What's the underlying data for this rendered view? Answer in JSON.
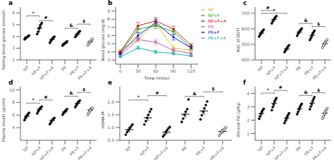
{
  "chart_data": [
    {
      "type": "scatter",
      "title": "a",
      "ylabel": "Fasting blood glucose (mmol/l)",
      "categories": [
        "NP",
        "NP+F",
        "NP+F+A",
        "PR",
        "PR+F",
        "PR+F+A"
      ],
      "means": [
        3.95,
        4.7,
        3.75,
        3.4,
        4.2,
        3.55
      ],
      "errors": [
        0.08,
        0.3,
        0.12,
        0.06,
        0.15,
        0.1
      ],
      "points": [
        [
          3.75,
          3.82,
          3.9,
          3.95,
          4.02,
          4.08
        ],
        [
          4.2,
          4.4,
          4.65,
          4.8,
          5.0,
          5.15
        ],
        [
          3.45,
          3.6,
          3.72,
          3.82,
          3.92,
          3.98
        ],
        [
          3.22,
          3.3,
          3.38,
          3.45,
          3.52,
          3.58
        ],
        [
          3.95,
          4.05,
          4.18,
          4.28,
          4.38,
          4.45
        ],
        [
          3.25,
          3.38,
          3.5,
          3.6,
          3.7,
          3.78
        ]
      ],
      "marker": [
        "filled",
        "filled",
        "filled",
        "filled",
        "filled",
        "open"
      ],
      "color": "#000000",
      "ylim": [
        2.0,
        6.5
      ],
      "yticks": [
        2,
        3,
        4,
        5,
        6
      ],
      "grid": false,
      "annotations": [
        {
          "x1": "NP",
          "x2": "NP+F",
          "y": 5.75,
          "text": "*"
        },
        {
          "x1": "NP+F",
          "x2": "NP+F+A",
          "y": 5.35,
          "text": "#"
        },
        {
          "x1": "PR",
          "x2": "PR+F",
          "y": 4.7,
          "text": "&"
        },
        {
          "x1": "PR+F",
          "x2": "PR+F+A",
          "y": 5.05,
          "text": "$"
        }
      ]
    },
    {
      "type": "line",
      "title": "b",
      "xlabel": "Time (mins)",
      "ylabel": "Blood glucose (mg/dl)",
      "x": [
        0,
        30,
        60,
        90,
        120
      ],
      "xlim": [
        -8,
        132
      ],
      "xticks": [
        0,
        30,
        60,
        90,
        120
      ],
      "ylim": [
        2.5,
        9.5
      ],
      "yticks": [
        3,
        4,
        5,
        6,
        7,
        8,
        9
      ],
      "marker": "square",
      "legend": "upper right",
      "grid": false,
      "series": [
        {
          "name": "NP",
          "color": "#d4b800",
          "values": [
            4.2,
            5.6,
            7.5,
            4.5,
            4.2
          ],
          "errors": [
            0.1,
            0.25,
            0.35,
            0.25,
            0.15
          ]
        },
        {
          "name": "NP+F",
          "color": "#00aa00",
          "values": [
            3.9,
            6.8,
            7.2,
            6.5,
            4.5
          ],
          "errors": [
            0.1,
            0.35,
            0.35,
            0.35,
            0.2
          ]
        },
        {
          "name": "NP+F+A",
          "color": "#cc0000",
          "values": [
            4.0,
            7.2,
            7.8,
            6.8,
            4.8
          ],
          "errors": [
            0.1,
            0.4,
            0.4,
            0.35,
            0.2
          ]
        },
        {
          "name": "PR",
          "color": "#cc44aa",
          "values": [
            3.6,
            5.5,
            5.2,
            4.2,
            3.8
          ],
          "errors": [
            0.1,
            0.25,
            0.25,
            0.18,
            0.15
          ]
        },
        {
          "name": "PR+F",
          "color": "#0000cc",
          "values": [
            3.8,
            6.0,
            7.6,
            5.8,
            4.5
          ],
          "errors": [
            0.1,
            0.35,
            0.4,
            0.35,
            0.2
          ]
        },
        {
          "name": "PR+F+A",
          "color": "#00aaaa",
          "values": [
            3.4,
            4.5,
            4.0,
            3.8,
            3.5
          ],
          "errors": [
            0.1,
            0.18,
            0.18,
            0.15,
            0.1
          ]
        }
      ]
    },
    {
      "type": "scatter",
      "title": "c",
      "ylabel": "AUC of OGTT",
      "categories": [
        "NP",
        "NP+F",
        "NP+F+A",
        "PR",
        "PR+F",
        "PR+F+A"
      ],
      "means": [
        572,
        660,
        470,
        580,
        558,
        505
      ],
      "errors": [
        10,
        12,
        10,
        10,
        15,
        12
      ],
      "points": [
        [
          550,
          560,
          572,
          580,
          588,
          595
        ],
        [
          635,
          648,
          658,
          667,
          675,
          682
        ],
        [
          450,
          460,
          470,
          480,
          488,
          495
        ],
        [
          555,
          568,
          578,
          588,
          595,
          602
        ],
        [
          528,
          540,
          555,
          568,
          578,
          588
        ],
        [
          478,
          492,
          505,
          515,
          523,
          530
        ]
      ],
      "marker": [
        "filled",
        "filled",
        "filled",
        "filled",
        "filled",
        "open"
      ],
      "color": "#000000",
      "ylim": [
        400,
        740
      ],
      "yticks": [
        400,
        500,
        600,
        700
      ],
      "grid": false,
      "annotations": [
        {
          "x1": "NP",
          "x2": "NP+F",
          "y": 718,
          "text": "#"
        },
        {
          "x1": "NP",
          "x2": "NP+F+A",
          "y": 700,
          "text": "*"
        },
        {
          "x1": "PR",
          "x2": "PR+F",
          "y": 635,
          "text": "&"
        },
        {
          "x1": "PR+F",
          "x2": "PR+F+A",
          "y": 615,
          "text": "$"
        }
      ]
    },
    {
      "type": "scatter",
      "title": "d",
      "ylabel": "Plasma insulin (μU/ml)",
      "categories": [
        "NP",
        "NP+F",
        "NP+F+A",
        "PR",
        "PR+F",
        "PR+F+A"
      ],
      "means": [
        5.8,
        6.9,
        5.15,
        6.5,
        7.85,
        6.8
      ],
      "errors": [
        0.2,
        0.3,
        0.2,
        0.2,
        0.3,
        0.3
      ],
      "points": [
        [
          5.2,
          5.5,
          5.8,
          6.0,
          6.2,
          6.35
        ],
        [
          6.25,
          6.55,
          6.85,
          7.0,
          7.18,
          7.35
        ],
        [
          4.55,
          4.78,
          5.05,
          5.25,
          5.42,
          5.55
        ],
        [
          6.05,
          6.28,
          6.48,
          6.65,
          6.82,
          6.95
        ],
        [
          7.25,
          7.52,
          7.78,
          7.98,
          8.15,
          8.32
        ],
        [
          6.05,
          6.35,
          6.62,
          6.82,
          6.98,
          7.12
        ]
      ],
      "marker": [
        "filled",
        "filled",
        "filled",
        "filled",
        "filled",
        "open"
      ],
      "color": "#000000",
      "ylim": [
        2.0,
        10.5
      ],
      "yticks": [
        4,
        6,
        8,
        10
      ],
      "grid": false,
      "annotations": [
        {
          "x1": "NP",
          "x2": "NP+F",
          "y": 7.9,
          "text": "*"
        },
        {
          "x1": "NP+F",
          "x2": "NP+F+A",
          "y": 8.4,
          "text": "#"
        },
        {
          "x1": "PR",
          "x2": "PR+F",
          "y": 9.0,
          "text": "&"
        },
        {
          "x1": "PR+F",
          "x2": "PR+F+A",
          "y": 9.6,
          "text": "$"
        }
      ]
    },
    {
      "type": "scatter",
      "title": "e",
      "ylabel": "HOMA-IR",
      "categories": [
        "NP",
        "NP+F",
        "NP+F+A",
        "PR",
        "PR+F",
        "PR+F+A"
      ],
      "means": [
        0.92,
        1.38,
        0.82,
        1.52,
        1.65,
        0.85
      ],
      "errors": [
        0.08,
        0.1,
        0.07,
        0.1,
        0.12,
        0.07
      ],
      "points": [
        [
          0.72,
          0.82,
          0.9,
          0.98,
          1.05,
          1.12
        ],
        [
          1.12,
          1.25,
          1.38,
          1.5,
          1.62,
          1.72
        ],
        [
          0.65,
          0.72,
          0.82,
          0.9,
          0.97,
          1.02
        ],
        [
          1.22,
          1.35,
          1.5,
          1.62,
          1.72,
          2.1
        ],
        [
          1.32,
          1.48,
          1.62,
          1.75,
          1.88,
          2.02
        ],
        [
          0.68,
          0.76,
          0.83,
          0.9,
          0.95,
          1.0
        ]
      ],
      "marker": [
        "filled",
        "filled",
        "filled",
        "filled",
        "filled",
        "open"
      ],
      "color": "#000000",
      "ylim": [
        0.5,
        2.6
      ],
      "yticks": [
        0.5,
        {
          "value": 1,
          "label": "1.0"
        },
        1.5,
        {
          "value": 2,
          "label": "2.0"
        }
      ],
      "grid": false,
      "annotations": [
        {
          "x1": "NP",
          "x2": "NP+F",
          "y": 2.08,
          "text": "*"
        },
        {
          "x1": "NP+F",
          "x2": "NP+F+A",
          "y": 2.25,
          "text": "#"
        },
        {
          "x1": "PR",
          "x2": "PR+F",
          "y": 2.22,
          "text": "&"
        },
        {
          "x1": "PR+F",
          "x2": "PR+F+A",
          "y": 2.4,
          "text": "$"
        }
      ]
    },
    {
      "type": "scatter",
      "title": "f",
      "ylabel": "Visceral Fat (g/Kg)",
      "categories": [
        "NP",
        "NP+F",
        "NP+F+A",
        "PR",
        "PR+F",
        "PR+F+A"
      ],
      "means": [
        2.5,
        3.25,
        2.15,
        2.85,
        3.28,
        2.52
      ],
      "errors": [
        0.15,
        0.2,
        0.15,
        0.15,
        0.2,
        0.18
      ],
      "points": [
        [
          2.1,
          2.28,
          2.48,
          2.62,
          2.75,
          2.85
        ],
        [
          2.75,
          2.98,
          3.18,
          3.38,
          3.52,
          3.65
        ],
        [
          1.78,
          1.95,
          2.12,
          2.28,
          2.4,
          2.52
        ],
        [
          2.45,
          2.62,
          2.82,
          2.98,
          3.12,
          3.22
        ],
        [
          2.82,
          3.02,
          3.22,
          3.42,
          3.58,
          3.72
        ],
        [
          2.12,
          2.28,
          2.48,
          2.62,
          2.75,
          2.88
        ]
      ],
      "marker": [
        "filled",
        "filled",
        "filled",
        "filled",
        "filled",
        "open"
      ],
      "color": "#000000",
      "ylim": [
        0.5,
        4.5
      ],
      "yticks": [
        1,
        2,
        3,
        4
      ],
      "grid": false,
      "annotations": [
        {
          "x1": "NP",
          "x2": "NP+F",
          "y": 4.02,
          "text": "*"
        },
        {
          "x1": "NP+F",
          "x2": "NP+F+A",
          "y": 4.22,
          "text": "#"
        },
        {
          "x1": "PR",
          "x2": "PR+F",
          "y": 3.85,
          "text": "&"
        },
        {
          "x1": "PR+F",
          "x2": "PR+F+A",
          "y": 4.05,
          "text": "$"
        }
      ]
    }
  ]
}
